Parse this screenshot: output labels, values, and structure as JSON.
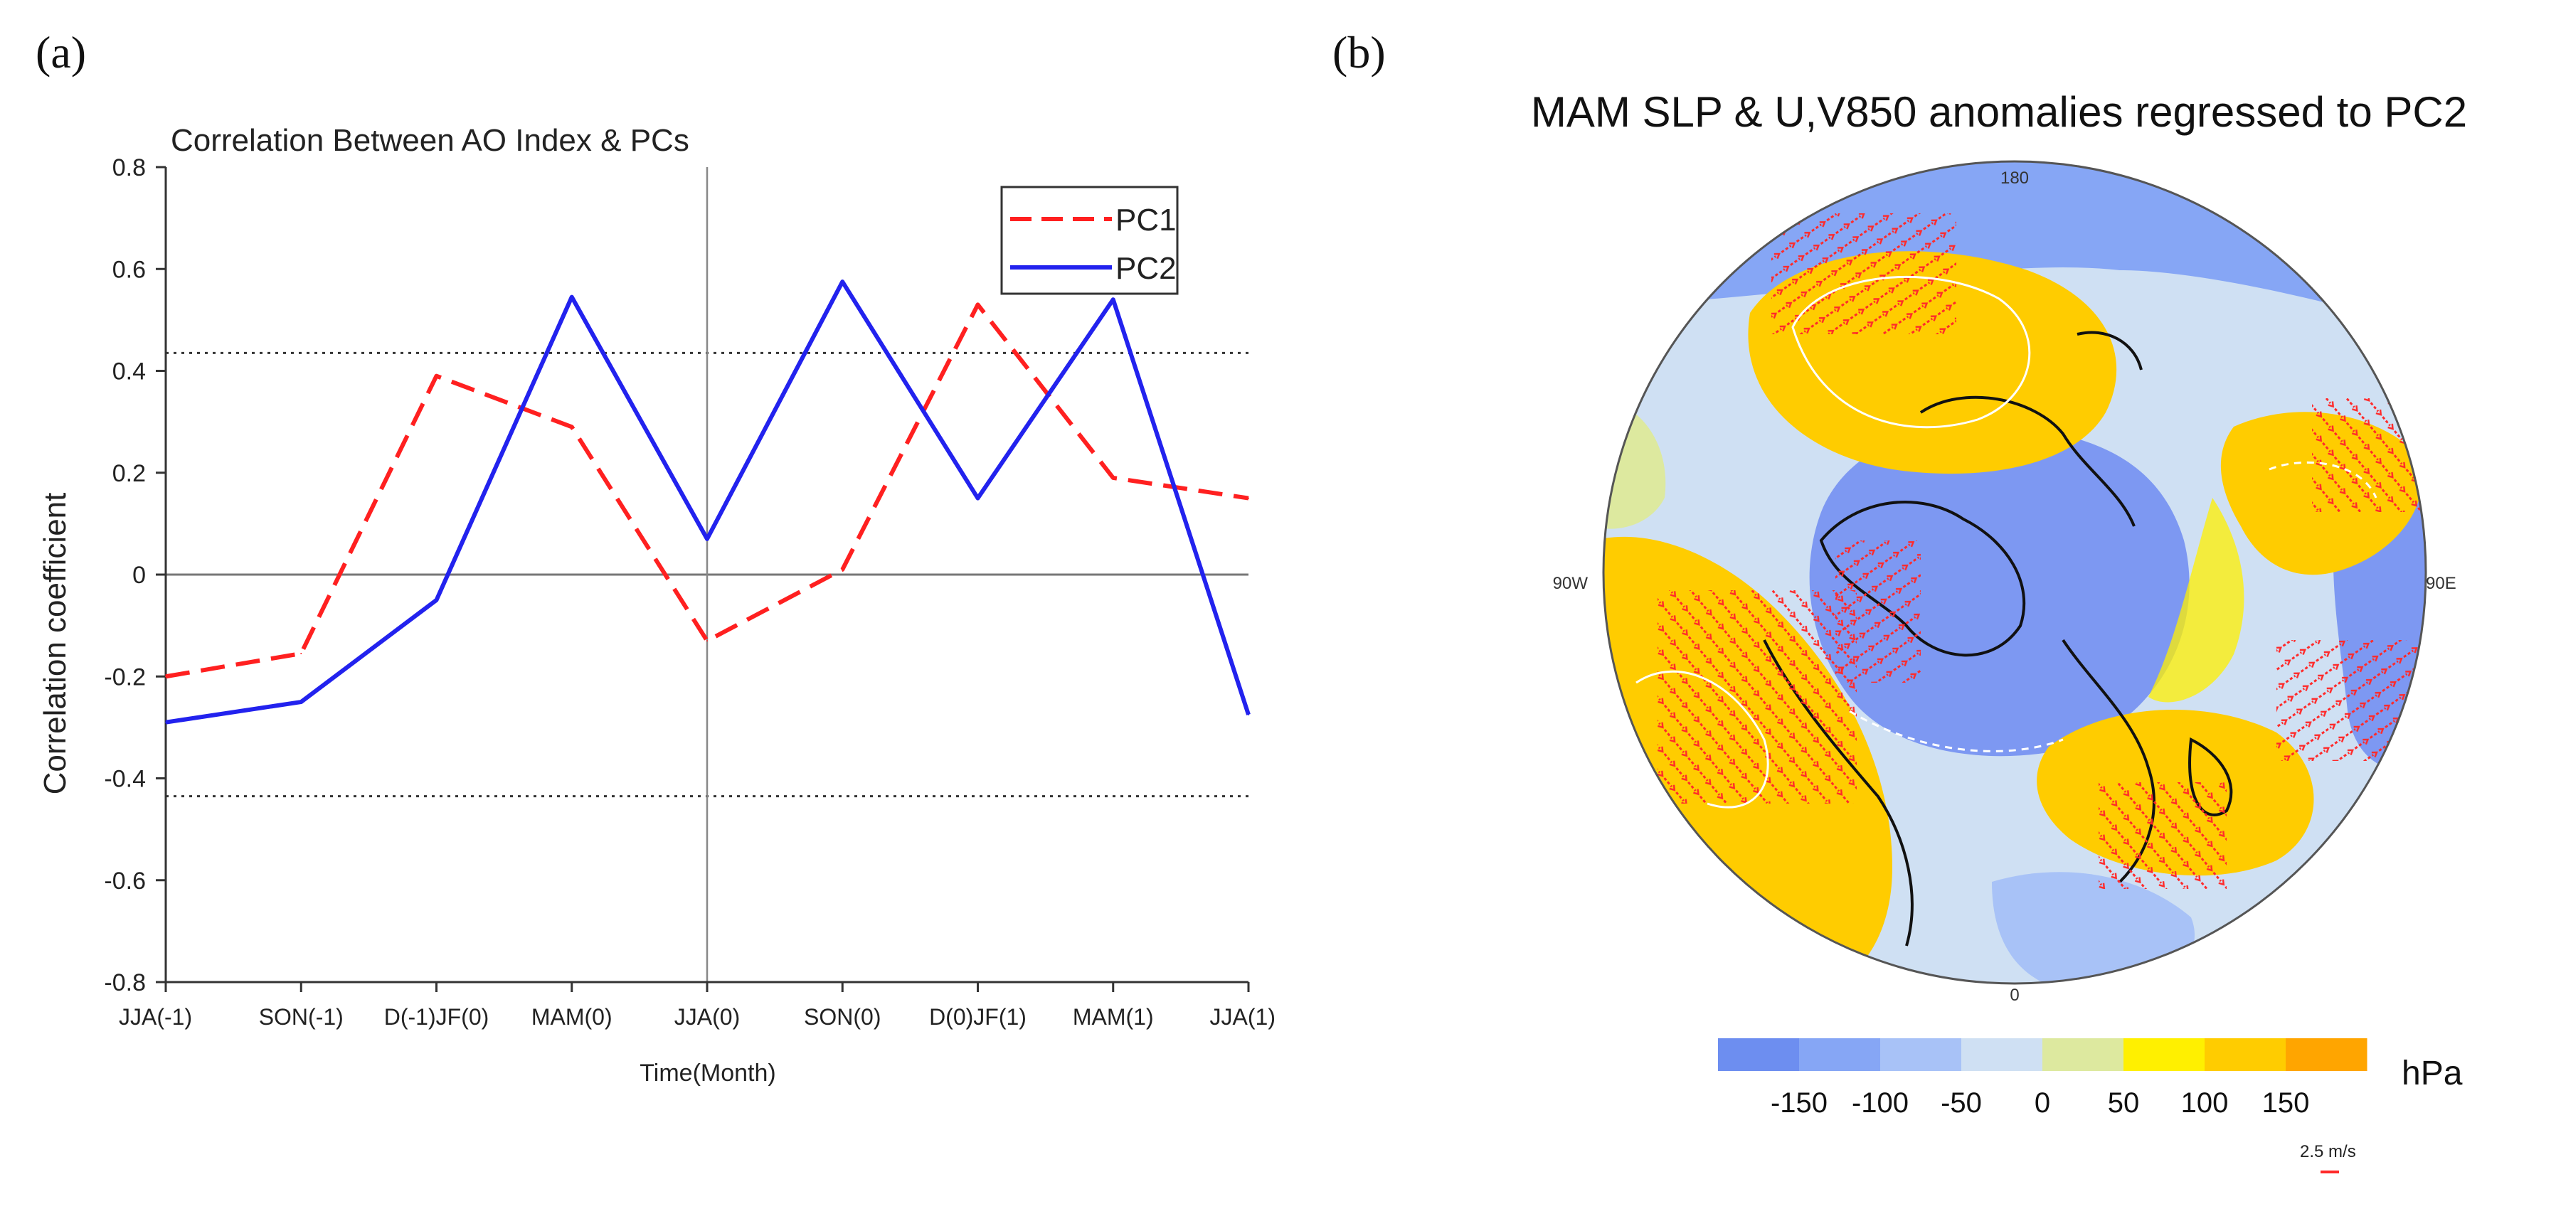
{
  "panel_a_label": "(a)",
  "panel_b_label": "(b)",
  "chart_data": [
    {
      "type": "line",
      "title": "Correlation Between AO Index & PCs",
      "xlabel": "Time(Month)",
      "ylabel": "Correlation coefficient",
      "categories": [
        "JJA(-1)",
        "SON(-1)",
        "D(-1)JF(0)",
        "MAM(0)",
        "JJA(0)",
        "SON(0)",
        "D(0)JF(1)",
        "MAM(1)",
        "JJA(1)"
      ],
      "ylim": [
        -0.8,
        0.8
      ],
      "yticks": [
        "-0.8",
        "-0.6",
        "-0.4",
        "-0.2",
        "0",
        "0.2",
        "0.4",
        "0.6",
        "0.8"
      ],
      "series": [
        {
          "name": "PC1",
          "color": "#ff2020",
          "dash": true,
          "values": [
            -0.2,
            -0.155,
            0.39,
            0.29,
            -0.13,
            0.01,
            0.53,
            0.19,
            0.15
          ]
        },
        {
          "name": "PC2",
          "color": "#2222ee",
          "dash": false,
          "values": [
            -0.29,
            -0.25,
            -0.05,
            0.545,
            0.07,
            0.575,
            0.15,
            0.54,
            -0.275
          ]
        }
      ],
      "significance_lines": [
        0.435,
        -0.435
      ],
      "zero_line": 0,
      "vertical_line_category": "JJA(0)",
      "legend": "top-right"
    },
    {
      "type": "heatmap",
      "title": "MAM SLP & U,V850 anomalies regressed to PC2",
      "projection": "polar-stereographic",
      "lon_labels": {
        "top": "180",
        "bottom": "0",
        "left": "90W",
        "right": "90E"
      },
      "colorbar": {
        "unit": "hPa",
        "tick_labels": [
          "-150",
          "-100",
          "-50",
          "0",
          "50",
          "100",
          "150"
        ],
        "colors": [
          "#6d8ef0",
          "#86a6f5",
          "#a8c2f7",
          "#cfe0f3",
          "#dde99f",
          "#fff000",
          "#ffcc00",
          "#ffa500"
        ]
      },
      "vector_reference": "2.5 m/s"
    }
  ]
}
